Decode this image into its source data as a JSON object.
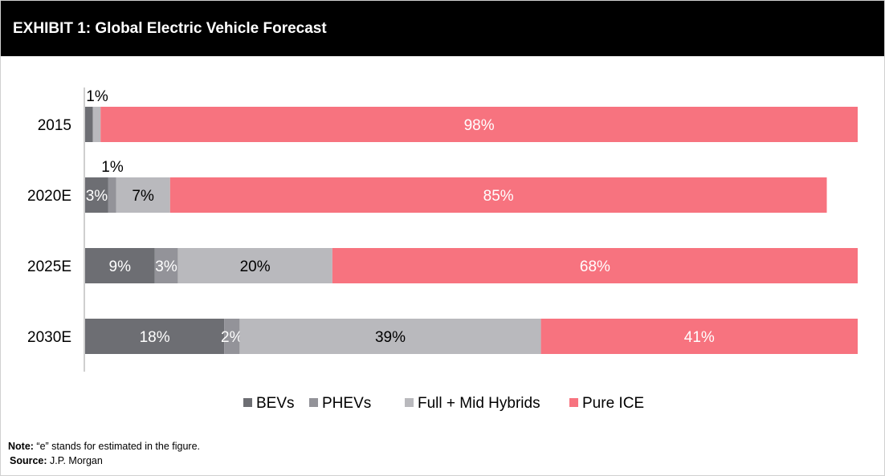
{
  "header": {
    "title": "EXHIBIT 1: Global Electric Vehicle Forecast"
  },
  "colors": {
    "BEVs": "#6d6e73",
    "PHEVs": "#939399",
    "Full + Mid Hybrids": "#b9b9bd",
    "Pure ICE": "#f7737f"
  },
  "chart_data": {
    "type": "bar",
    "orientation": "horizontal",
    "stacked": true,
    "categories": [
      "2015",
      "2020E",
      "2025E",
      "2030E"
    ],
    "series": [
      {
        "name": "BEVs",
        "values": [
          1,
          3,
          9,
          18
        ],
        "labels": [
          "",
          "3%",
          "9%",
          "18%"
        ]
      },
      {
        "name": "PHEVs",
        "values": [
          0,
          1,
          3,
          2
        ],
        "labels": [
          "",
          "",
          "3%",
          "2%"
        ]
      },
      {
        "name": "Full + Mid Hybrids",
        "values": [
          1,
          7,
          20,
          39
        ],
        "labels": [
          "",
          "7%",
          "20%",
          "39%"
        ]
      },
      {
        "name": "Pure ICE",
        "values": [
          98,
          85,
          68,
          41
        ],
        "labels": [
          "98%",
          "85%",
          "68%",
          "41%"
        ]
      }
    ],
    "annotations": [
      {
        "category": "2015",
        "text": "1%"
      },
      {
        "category": "2020E",
        "text": "1%"
      }
    ],
    "xlim": [
      0,
      100
    ],
    "grid": false,
    "legend_position": "bottom"
  },
  "footer": {
    "note_label": "Note:",
    "note_text": " “e” stands for estimated in the figure.",
    "source_label": "Source:",
    "source_text": " J.P. Morgan"
  }
}
